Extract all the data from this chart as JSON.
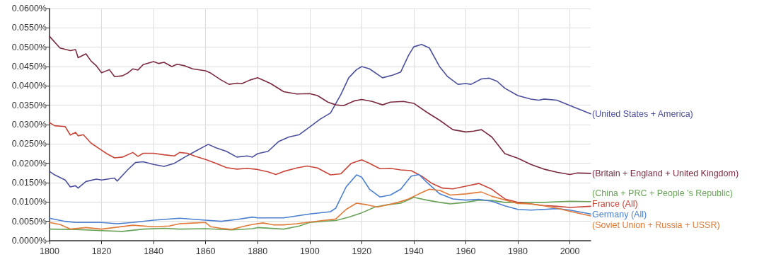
{
  "chart_data": {
    "type": "line",
    "xlim": [
      1800,
      2008
    ],
    "ylim": [
      0,
      0.06
    ],
    "xticks": [
      1800,
      1820,
      1840,
      1860,
      1880,
      1900,
      1920,
      1940,
      1960,
      1980,
      2000
    ],
    "yticks": [
      {
        "value": 0,
        "label": "0.0000%"
      },
      {
        "value": 0.005,
        "label": "0.0050%"
      },
      {
        "value": 0.01,
        "label": "0.0100%"
      },
      {
        "value": 0.015,
        "label": "0.0150%"
      },
      {
        "value": 0.02,
        "label": "0.0200%"
      },
      {
        "value": 0.025,
        "label": "0.0250%"
      },
      {
        "value": 0.03,
        "label": "0.0300%"
      },
      {
        "value": 0.035,
        "label": "0.0350%"
      },
      {
        "value": 0.04,
        "label": "0.0400%"
      },
      {
        "value": 0.045,
        "label": "0.0450%"
      },
      {
        "value": 0.05,
        "label": "0.0500%"
      },
      {
        "value": 0.055,
        "label": "0.0550%"
      },
      {
        "value": 0.06,
        "label": "0.0600%"
      }
    ],
    "grid": true,
    "legend": false,
    "marker": "none",
    "line_style": "solid",
    "series": [
      {
        "name": "(United States + America)",
        "color": "#4b4f9c",
        "x": [
          1800,
          1802,
          1806,
          1808,
          1810,
          1811,
          1814,
          1818,
          1820,
          1825,
          1826,
          1830,
          1833,
          1836,
          1840,
          1844,
          1848,
          1852,
          1856,
          1861,
          1864,
          1868,
          1872,
          1876,
          1878,
          1880,
          1884,
          1888,
          1892,
          1896,
          1900,
          1904,
          1908,
          1912,
          1915,
          1918,
          1920,
          1923,
          1928,
          1932,
          1935,
          1938,
          1940,
          1943,
          1946,
          1950,
          1953,
          1957,
          1960,
          1962,
          1966,
          1969,
          1972,
          1975,
          1980,
          1985,
          1988,
          1990,
          1995,
          1998,
          2002,
          2008
        ],
        "values": [
          0.0179,
          0.017,
          0.0157,
          0.0139,
          0.0142,
          0.0136,
          0.0153,
          0.0159,
          0.0157,
          0.0162,
          0.0154,
          0.0183,
          0.0202,
          0.0204,
          0.0197,
          0.0192,
          0.02,
          0.0216,
          0.0231,
          0.0249,
          0.024,
          0.0231,
          0.0216,
          0.0219,
          0.0216,
          0.0225,
          0.0231,
          0.0256,
          0.0268,
          0.0274,
          0.0294,
          0.0314,
          0.033,
          0.0378,
          0.0421,
          0.0442,
          0.045,
          0.0444,
          0.0421,
          0.0428,
          0.0436,
          0.0479,
          0.0501,
          0.0507,
          0.0498,
          0.0449,
          0.0424,
          0.0404,
          0.0406,
          0.0404,
          0.0418,
          0.042,
          0.0412,
          0.0394,
          0.0375,
          0.0366,
          0.0363,
          0.0366,
          0.0363,
          0.0355,
          0.0344,
          0.0328
        ]
      },
      {
        "name": "(Britain + England + United Kingdom)",
        "color": "#7a2a3e",
        "x": [
          1800,
          1804,
          1808,
          1810,
          1811,
          1814,
          1816,
          1818,
          1820,
          1823,
          1825,
          1828,
          1830,
          1832,
          1834,
          1836,
          1840,
          1842,
          1844,
          1847,
          1849,
          1852,
          1855,
          1860,
          1862,
          1866,
          1869,
          1872,
          1874,
          1877,
          1880,
          1885,
          1890,
          1895,
          1900,
          1903,
          1907,
          1910,
          1913,
          1917,
          1920,
          1924,
          1928,
          1931,
          1936,
          1940,
          1945,
          1950,
          1955,
          1960,
          1963,
          1966,
          1970,
          1975,
          1980,
          1985,
          1990,
          1995,
          2000,
          2003,
          2008
        ],
        "values": [
          0.0528,
          0.0498,
          0.0491,
          0.0494,
          0.0473,
          0.0483,
          0.0464,
          0.0452,
          0.0434,
          0.0442,
          0.0424,
          0.0426,
          0.0433,
          0.0444,
          0.0441,
          0.0455,
          0.0463,
          0.0458,
          0.0461,
          0.045,
          0.0456,
          0.0452,
          0.0444,
          0.0439,
          0.0433,
          0.0415,
          0.0404,
          0.0407,
          0.0406,
          0.0415,
          0.0421,
          0.0406,
          0.0385,
          0.0379,
          0.038,
          0.0375,
          0.0358,
          0.0351,
          0.0349,
          0.0361,
          0.0365,
          0.036,
          0.0351,
          0.0358,
          0.036,
          0.0355,
          0.0332,
          0.0311,
          0.0287,
          0.0281,
          0.0283,
          0.0287,
          0.0268,
          0.0225,
          0.0213,
          0.0197,
          0.0185,
          0.0177,
          0.0171,
          0.0175,
          0.0174
        ]
      },
      {
        "name": "(China + PRC + People 's Republic)",
        "color": "#6aa35a",
        "x": [
          1800,
          1810,
          1820,
          1828,
          1836,
          1844,
          1850,
          1860,
          1870,
          1878,
          1880,
          1890,
          1896,
          1900,
          1905,
          1910,
          1915,
          1920,
          1925,
          1930,
          1935,
          1940,
          1945,
          1950,
          1954,
          1960,
          1965,
          1970,
          1975,
          1990,
          2000,
          2008
        ],
        "values": [
          0.003,
          0.0029,
          0.0026,
          0.0024,
          0.003,
          0.0032,
          0.003,
          0.0031,
          0.0028,
          0.0031,
          0.0034,
          0.003,
          0.0038,
          0.0047,
          0.005,
          0.0052,
          0.0061,
          0.0072,
          0.0087,
          0.0093,
          0.0097,
          0.0112,
          0.0105,
          0.0099,
          0.0095,
          0.0099,
          0.0105,
          0.0104,
          0.0099,
          0.0099,
          0.0102,
          0.0101
        ]
      },
      {
        "name": "France (All)",
        "color": "#c8463a",
        "x": [
          1800,
          1802,
          1806,
          1808,
          1810,
          1811,
          1813,
          1816,
          1820,
          1822,
          1825,
          1828,
          1832,
          1834,
          1836,
          1840,
          1844,
          1848,
          1850,
          1853,
          1856,
          1860,
          1864,
          1868,
          1872,
          1876,
          1880,
          1884,
          1887,
          1890,
          1895,
          1899,
          1903,
          1908,
          1912,
          1916,
          1920,
          1923,
          1927,
          1931,
          1935,
          1939,
          1943,
          1947,
          1951,
          1955,
          1960,
          1965,
          1970,
          1975,
          1980,
          1985,
          1990,
          1995,
          2000,
          2008
        ],
        "values": [
          0.0305,
          0.0297,
          0.0295,
          0.0273,
          0.028,
          0.0271,
          0.0274,
          0.0252,
          0.0234,
          0.0225,
          0.0214,
          0.0216,
          0.0228,
          0.0218,
          0.0226,
          0.0226,
          0.0222,
          0.0219,
          0.0228,
          0.0226,
          0.0218,
          0.021,
          0.02,
          0.0189,
          0.0185,
          0.0187,
          0.0184,
          0.0178,
          0.0171,
          0.0179,
          0.0188,
          0.0193,
          0.0188,
          0.017,
          0.0173,
          0.02,
          0.0209,
          0.02,
          0.0186,
          0.0187,
          0.0183,
          0.0181,
          0.0167,
          0.0148,
          0.0136,
          0.0134,
          0.0141,
          0.0148,
          0.0133,
          0.0108,
          0.0099,
          0.0095,
          0.0091,
          0.0089,
          0.0086,
          0.0089
        ]
      },
      {
        "name": "Germany (All)",
        "color": "#4a7fd0",
        "x": [
          1800,
          1806,
          1810,
          1820,
          1826,
          1832,
          1840,
          1850,
          1860,
          1866,
          1872,
          1878,
          1880,
          1890,
          1900,
          1908,
          1910,
          1914,
          1918,
          1920,
          1923,
          1927,
          1931,
          1935,
          1939,
          1942,
          1945,
          1950,
          1955,
          1960,
          1965,
          1970,
          1975,
          1980,
          1985,
          1990,
          1995,
          2000,
          2008
        ],
        "values": [
          0.0058,
          0.005,
          0.0047,
          0.0047,
          0.0044,
          0.0047,
          0.0053,
          0.0058,
          0.0053,
          0.005,
          0.0055,
          0.0061,
          0.0059,
          0.0059,
          0.0069,
          0.0075,
          0.0084,
          0.0139,
          0.017,
          0.0164,
          0.0133,
          0.0113,
          0.0118,
          0.0133,
          0.0167,
          0.0171,
          0.0151,
          0.0121,
          0.0108,
          0.0105,
          0.0107,
          0.0102,
          0.009,
          0.0081,
          0.0079,
          0.0081,
          0.0083,
          0.0079,
          0.0069
        ]
      },
      {
        "name": "(Soviet Union + Russia + USSR)",
        "color": "#e07b39",
        "x": [
          1800,
          1804,
          1808,
          1814,
          1820,
          1826,
          1832,
          1840,
          1846,
          1850,
          1856,
          1860,
          1862,
          1866,
          1870,
          1874,
          1878,
          1882,
          1886,
          1890,
          1895,
          1900,
          1905,
          1910,
          1914,
          1918,
          1922,
          1926,
          1930,
          1934,
          1938,
          1942,
          1946,
          1950,
          1954,
          1960,
          1966,
          1970,
          1975,
          1980,
          1985,
          1990,
          1995,
          2000,
          2008
        ],
        "values": [
          0.0047,
          0.0042,
          0.003,
          0.0034,
          0.003,
          0.0035,
          0.004,
          0.0036,
          0.0038,
          0.0044,
          0.0046,
          0.0047,
          0.0036,
          0.0032,
          0.0029,
          0.0036,
          0.0042,
          0.0046,
          0.0041,
          0.0041,
          0.0044,
          0.0048,
          0.0052,
          0.0056,
          0.0081,
          0.0097,
          0.0093,
          0.0087,
          0.0093,
          0.0099,
          0.0108,
          0.0121,
          0.0133,
          0.013,
          0.0118,
          0.0121,
          0.0126,
          0.0115,
          0.0105,
          0.0096,
          0.0095,
          0.009,
          0.0084,
          0.0076,
          0.0064
        ]
      }
    ]
  }
}
